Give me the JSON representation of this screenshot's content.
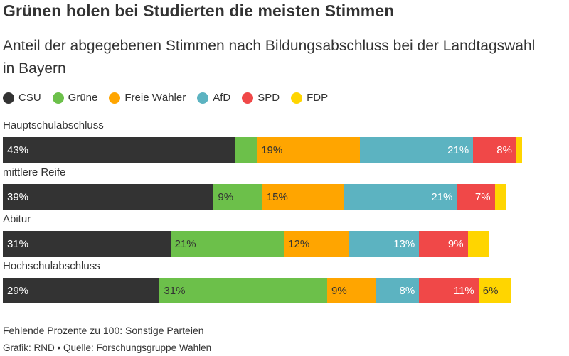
{
  "title": "Grünen holen bei Studierten die meisten Stimmen",
  "subtitle": "Anteil der abgegebenen Stimmen nach Bildungsabschluss bei der Landtagswahl in Bayern",
  "footnote": "Fehlende Prozente zu 100: Sonstige Parteien",
  "source": "Grafik: RND • Quelle: Forschungsgruppe Wahlen",
  "colors": {
    "CSU": "#333333",
    "Grüne": "#6cc04a",
    "Freie Wähler": "#ffa500",
    "AfD": "#5cb3c1",
    "SPD": "#f04848",
    "FDP": "#ffd500"
  },
  "chart_data": {
    "type": "bar",
    "orientation": "horizontal",
    "stacked": true,
    "unit": "%",
    "categories": [
      "Hauptschulabschluss",
      "mittlere Reife",
      "Abitur",
      "Hochschulabschluss"
    ],
    "series": [
      {
        "name": "CSU",
        "values": [
          43,
          39,
          31,
          29
        ],
        "labels": [
          "43%",
          "39%",
          "31%",
          "29%"
        ]
      },
      {
        "name": "Grüne",
        "values": [
          4,
          9,
          21,
          31
        ],
        "labels": [
          "",
          "9%",
          "21%",
          "31%"
        ]
      },
      {
        "name": "Freie Wähler",
        "values": [
          19,
          15,
          12,
          9
        ],
        "labels": [
          "19%",
          "15%",
          "12%",
          "9%"
        ]
      },
      {
        "name": "AfD",
        "values": [
          21,
          21,
          13,
          8
        ],
        "labels": [
          "21%",
          "21%",
          "13%",
          "8%"
        ]
      },
      {
        "name": "SPD",
        "values": [
          8,
          7,
          9,
          11
        ],
        "labels": [
          "8%",
          "7%",
          "9%",
          "11%"
        ]
      },
      {
        "name": "FDP",
        "values": [
          1,
          2,
          4,
          6
        ],
        "labels": [
          "",
          "",
          "",
          "6%"
        ]
      }
    ],
    "xlim": [
      0,
      100
    ],
    "legend": "top-left"
  }
}
